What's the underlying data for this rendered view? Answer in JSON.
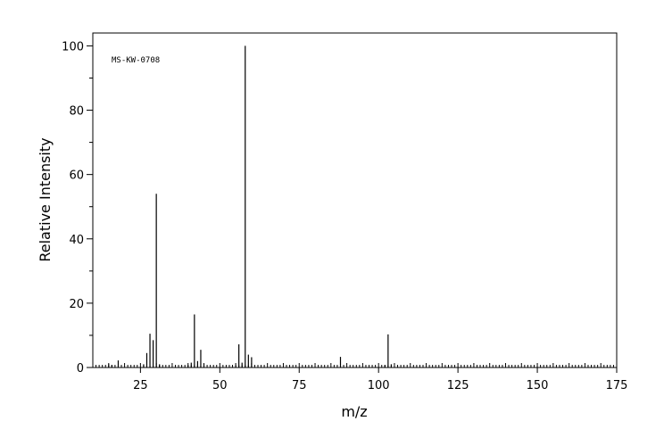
{
  "chart_data": {
    "type": "bar",
    "title": "",
    "annotation": "MS-KW-0708",
    "xlabel": "m/z",
    "ylabel": "Relative Intensity",
    "xlim": [
      10,
      175
    ],
    "ylim": [
      0,
      104
    ],
    "x_ticks": [
      "25",
      "50",
      "75",
      "100",
      "125",
      "150",
      "175"
    ],
    "y_ticks": [
      "0",
      "20",
      "40",
      "60",
      "80",
      "100"
    ],
    "grid": false,
    "legend": "none",
    "colors": {
      "bar": "#000000",
      "axis": "#000000",
      "background": "#ffffff"
    },
    "peaks": [
      {
        "mz": 15,
        "intensity": 1.0
      },
      {
        "mz": 16,
        "intensity": 0.8
      },
      {
        "mz": 18,
        "intensity": 2.2
      },
      {
        "mz": 26,
        "intensity": 1.0
      },
      {
        "mz": 27,
        "intensity": 4.5
      },
      {
        "mz": 28,
        "intensity": 10.5
      },
      {
        "mz": 29,
        "intensity": 8.5
      },
      {
        "mz": 30,
        "intensity": 54.0
      },
      {
        "mz": 31,
        "intensity": 1.0
      },
      {
        "mz": 40,
        "intensity": 0.8
      },
      {
        "mz": 41,
        "intensity": 1.5
      },
      {
        "mz": 42,
        "intensity": 16.5
      },
      {
        "mz": 43,
        "intensity": 2.0
      },
      {
        "mz": 44,
        "intensity": 5.5
      },
      {
        "mz": 45,
        "intensity": 1.0
      },
      {
        "mz": 55,
        "intensity": 0.8
      },
      {
        "mz": 56,
        "intensity": 7.2
      },
      {
        "mz": 57,
        "intensity": 1.5
      },
      {
        "mz": 58,
        "intensity": 100.0
      },
      {
        "mz": 59,
        "intensity": 4.0
      },
      {
        "mz": 60,
        "intensity": 3.2
      },
      {
        "mz": 88,
        "intensity": 3.3
      },
      {
        "mz": 102,
        "intensity": 0.8
      },
      {
        "mz": 103,
        "intensity": 10.3
      },
      {
        "mz": 104,
        "intensity": 1.0
      }
    ]
  }
}
